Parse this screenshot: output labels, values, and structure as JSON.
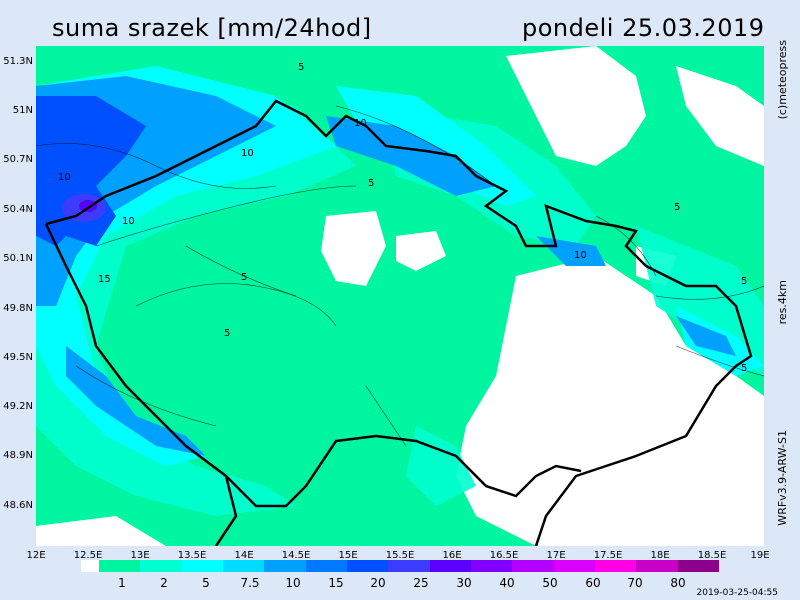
{
  "header": {
    "title": "suma srazek [mm/24hod]",
    "date": "pondeli 25.03.2019"
  },
  "side_labels": {
    "copyright": "(c)meteopress",
    "resolution": "res.4km",
    "model": "WRFv3.9-ARW-S1"
  },
  "timestamp": "2019-03-25-04:55",
  "axes": {
    "y_ticks": [
      "51.3N",
      "51N",
      "50.7N",
      "50.4N",
      "50.1N",
      "49.8N",
      "49.5N",
      "49.2N",
      "48.9N",
      "48.6N"
    ],
    "x_ticks": [
      "12E",
      "12.5E",
      "13E",
      "13.5E",
      "14E",
      "14.5E",
      "15E",
      "15.5E",
      "16E",
      "16.5E",
      "17E",
      "17.5E",
      "18E",
      "18.5E",
      "19E"
    ]
  },
  "contour_labels": [
    "5",
    "10",
    "10",
    "10",
    "5",
    "10",
    "15",
    "5",
    "5",
    "5",
    "10",
    "5",
    "5",
    "5"
  ],
  "legend": {
    "labels": [
      "1",
      "2",
      "5",
      "7.5",
      "10",
      "15",
      "20",
      "25",
      "30",
      "40",
      "50",
      "60",
      "70",
      "80"
    ],
    "colors": [
      "#00f5a0",
      "#00ffd2",
      "#00ffff",
      "#00dcff",
      "#00a0ff",
      "#0078ff",
      "#0050ff",
      "#3c3cff",
      "#5a00ff",
      "#8200ff",
      "#b400ff",
      "#dc00ff",
      "#ff00e6",
      "#c800c8",
      "#8c008c"
    ]
  }
}
